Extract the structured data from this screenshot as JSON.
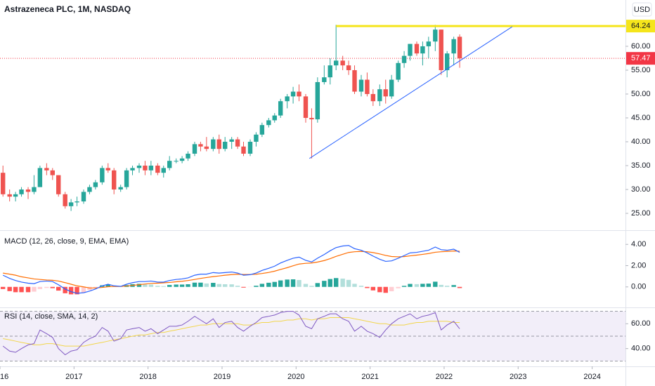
{
  "chart_data": [
    {
      "type": "candlestick",
      "title": "Astrazeneca PLC, 1M, NASDAQ",
      "currency": "USD",
      "x": [
        2016.04,
        2016.13,
        2016.21,
        2016.29,
        2016.38,
        2016.46,
        2016.54,
        2016.63,
        2016.71,
        2016.79,
        2016.88,
        2016.96,
        2017.04,
        2017.13,
        2017.21,
        2017.29,
        2017.38,
        2017.46,
        2017.54,
        2017.63,
        2017.71,
        2017.79,
        2017.88,
        2017.96,
        2018.04,
        2018.13,
        2018.21,
        2018.29,
        2018.38,
        2018.46,
        2018.54,
        2018.63,
        2018.71,
        2018.79,
        2018.88,
        2018.96,
        2019.04,
        2019.13,
        2019.21,
        2019.29,
        2019.38,
        2019.46,
        2019.54,
        2019.63,
        2019.71,
        2019.79,
        2019.88,
        2019.96,
        2020.04,
        2020.13,
        2020.21,
        2020.29,
        2020.38,
        2020.46,
        2020.54,
        2020.63,
        2020.71,
        2020.79,
        2020.88,
        2020.96,
        2021.04,
        2021.13,
        2021.21,
        2021.29,
        2021.38,
        2021.46,
        2021.54,
        2021.63,
        2021.71,
        2021.79,
        2021.88,
        2021.96,
        2022.04,
        2022.13,
        2022.21
      ],
      "open": [
        33.5,
        29,
        28.5,
        29,
        30,
        29.5,
        30.5,
        34.5,
        34,
        33,
        29,
        26.5,
        27.3,
        27.5,
        29.5,
        30.5,
        31.5,
        34.5,
        34,
        30,
        30.5,
        34,
        34.5,
        35,
        34,
        35,
        33.5,
        34.5,
        36,
        36,
        36.5,
        37.5,
        39.5,
        39,
        38.5,
        40.5,
        38.5,
        40,
        40.5,
        39,
        37.5,
        40,
        41.5,
        43.5,
        44.5,
        45.5,
        48.5,
        49.5,
        50.5,
        49.5,
        45,
        44.7,
        52.5,
        53.5,
        56,
        57,
        56,
        55,
        50.5,
        53,
        50,
        48.5,
        51,
        49.5,
        53,
        56.5,
        58,
        60.5,
        58.5,
        60,
        61,
        63.5,
        55,
        58.5,
        62
      ],
      "high": [
        35,
        30,
        29.5,
        30.5,
        30.5,
        33,
        35,
        35.5,
        34.5,
        33,
        29.5,
        28,
        28.5,
        30,
        31,
        32,
        35,
        35.5,
        34.5,
        31,
        34.5,
        35,
        35.5,
        36,
        36,
        35.5,
        35,
        37,
        36.5,
        37,
        38,
        40,
        40,
        41,
        41,
        41.5,
        41,
        41,
        41,
        40,
        40.5,
        42,
        44,
        45,
        46,
        49,
        50,
        51.5,
        52,
        50,
        47,
        53.5,
        56,
        57.5,
        64.5,
        58,
        57,
        56,
        54,
        54.5,
        51,
        52,
        53,
        54,
        57,
        59,
        60.5,
        61,
        61,
        62,
        64.5,
        63.5,
        59,
        62,
        62.5
      ],
      "low": [
        28.5,
        27.5,
        27.5,
        28.5,
        28,
        29,
        30.5,
        33,
        32,
        28.5,
        26,
        25.5,
        26.5,
        27,
        29,
        30,
        31,
        33.5,
        29,
        29.5,
        30,
        33,
        33.5,
        33,
        33,
        33,
        32.5,
        34,
        35.5,
        35.5,
        36,
        37,
        38,
        38,
        38,
        37.5,
        38,
        38.5,
        38.5,
        37,
        37,
        39,
        41,
        43,
        44,
        45,
        47,
        48,
        48.5,
        44,
        36.5,
        44,
        52,
        52,
        55,
        55,
        54,
        50,
        49.5,
        49.5,
        47.5,
        47.5,
        48,
        49,
        52.5,
        55.5,
        57,
        58,
        56,
        57.5,
        59,
        54,
        53.5,
        56,
        55.5
      ],
      "close": [
        29,
        28.5,
        29,
        30,
        29.5,
        30.5,
        34.5,
        34,
        33,
        29,
        26.5,
        27.3,
        27.5,
        29.5,
        30.5,
        31.5,
        34.5,
        34,
        30,
        30.5,
        34,
        34.5,
        35,
        34,
        35,
        33.5,
        34.5,
        36,
        36,
        36.5,
        37.5,
        39.5,
        39,
        38.5,
        40.5,
        38.5,
        40,
        40.5,
        39,
        37.5,
        40,
        41.5,
        43.5,
        44.5,
        45.5,
        48.5,
        49.5,
        50.5,
        49.5,
        45,
        44.7,
        52.5,
        53.5,
        56,
        57,
        56,
        55,
        50.5,
        53,
        50,
        48.5,
        51,
        49.5,
        53,
        56.5,
        58,
        60.5,
        58.5,
        60,
        61,
        63.5,
        55,
        58.5,
        61.5,
        57.47
      ],
      "up_color": "#26a69a",
      "down_color": "#ef5350",
      "xlim": [
        2016,
        2024.45
      ],
      "xticks": [
        {
          "value": 2016,
          "label": "16"
        },
        2017,
        2018,
        2019,
        2020,
        2021,
        2022,
        2023,
        2024
      ],
      "ylim": [
        21.47,
        69.7
      ],
      "yticks": [
        {
          "value": 25,
          "label": "25.00"
        },
        {
          "value": 30,
          "label": "30.00"
        },
        {
          "value": 35,
          "label": "35.00"
        },
        {
          "value": 40,
          "label": "40.00"
        },
        {
          "value": 45,
          "label": "45.00"
        },
        {
          "value": 50,
          "label": "50.00"
        },
        {
          "value": 55,
          "label": "55.00"
        },
        {
          "value": 60,
          "label": "60.00"
        }
      ],
      "last_price": 57.47,
      "last_price_color": "#f23645",
      "horizontal_line": {
        "value": 64.24,
        "from": 2020.54,
        "color": "#f5e51b"
      },
      "trend_line": {
        "x": [
          2020.18,
          2022.92
        ],
        "y": [
          36.5,
          64.1
        ],
        "color": "#2962ff"
      }
    },
    {
      "type": "macd",
      "title": "MACD (12, 26, close, 9, EMA, EMA)",
      "macd": [
        1.1,
        0.8,
        0.6,
        0.45,
        0.35,
        0.3,
        0.5,
        0.55,
        0.5,
        0.2,
        -0.2,
        -0.45,
        -0.6,
        -0.55,
        -0.4,
        -0.2,
        0.1,
        0.25,
        0.1,
        0.05,
        0.25,
        0.4,
        0.5,
        0.5,
        0.55,
        0.45,
        0.45,
        0.6,
        0.7,
        0.75,
        0.85,
        1.1,
        1.2,
        1.2,
        1.35,
        1.3,
        1.35,
        1.4,
        1.3,
        1.1,
        1.15,
        1.3,
        1.55,
        1.75,
        1.95,
        2.25,
        2.5,
        2.7,
        2.8,
        2.5,
        2.35,
        2.7,
        3.05,
        3.4,
        3.7,
        3.85,
        3.9,
        3.6,
        3.45,
        3.2,
        2.9,
        2.6,
        2.4,
        2.45,
        2.7,
        2.95,
        3.2,
        3.25,
        3.35,
        3.45,
        3.75,
        3.5,
        3.45,
        3.55,
        3.25
      ],
      "signal": [
        1.3,
        1.2,
        1.1,
        0.95,
        0.85,
        0.75,
        0.7,
        0.65,
        0.62,
        0.55,
        0.4,
        0.25,
        0.1,
        0,
        -0.1,
        -0.1,
        -0.05,
        0.02,
        0.04,
        0.04,
        0.08,
        0.14,
        0.21,
        0.27,
        0.33,
        0.35,
        0.38,
        0.42,
        0.48,
        0.53,
        0.6,
        0.7,
        0.8,
        0.88,
        0.97,
        1.03,
        1.1,
        1.16,
        1.19,
        1.17,
        1.17,
        1.19,
        1.26,
        1.36,
        1.48,
        1.64,
        1.81,
        1.99,
        2.15,
        2.22,
        2.25,
        2.34,
        2.48,
        2.66,
        2.87,
        3.07,
        3.24,
        3.31,
        3.34,
        3.31,
        3.23,
        3.1,
        2.96,
        2.86,
        2.83,
        2.85,
        2.92,
        2.99,
        3.06,
        3.14,
        3.26,
        3.31,
        3.34,
        3.38,
        3.36
      ],
      "histogram": [
        -0.2,
        -0.4,
        -0.5,
        -0.5,
        -0.5,
        -0.45,
        -0.2,
        -0.1,
        -0.12,
        -0.35,
        -0.6,
        -0.7,
        -0.7,
        -0.55,
        -0.3,
        -0.1,
        0.15,
        0.23,
        0.06,
        0.01,
        0.17,
        0.26,
        0.29,
        0.23,
        0.22,
        0.1,
        0.07,
        0.18,
        0.22,
        0.22,
        0.25,
        0.4,
        0.4,
        0.32,
        0.38,
        0.27,
        0.25,
        0.24,
        0.11,
        -0.07,
        -0.02,
        0.11,
        0.29,
        0.39,
        0.47,
        0.61,
        0.69,
        0.71,
        0.65,
        0.28,
        0.1,
        0.36,
        0.57,
        0.74,
        0.83,
        0.78,
        0.66,
        0.29,
        0.11,
        -0.11,
        -0.33,
        -0.5,
        -0.56,
        -0.41,
        -0.13,
        0.1,
        0.28,
        0.26,
        0.29,
        0.31,
        0.49,
        0.19,
        0.11,
        0.17,
        -0.11
      ],
      "macd_color": "#2962ff",
      "signal_color": "#ff6d00",
      "histogram_colors": [
        "#26a69a",
        "#b2dfdb",
        "#ffcdd2",
        "#ff5252"
      ],
      "ylim": [
        -1.93,
        5.27
      ],
      "yticks": [
        {
          "value": 0,
          "label": "0.00"
        },
        {
          "value": 2,
          "label": "2.00"
        },
        {
          "value": 4,
          "label": "4.00"
        }
      ]
    },
    {
      "type": "rsi",
      "title": "RSI (14, close, SMA, 14, 2)",
      "rsi": [
        42,
        38,
        37,
        40,
        43,
        44,
        55,
        52,
        49,
        40,
        35,
        38,
        39,
        45,
        48,
        50,
        57,
        54,
        46,
        48,
        55,
        56,
        57,
        54,
        56,
        52,
        55,
        58,
        58,
        59,
        62,
        66,
        63,
        60,
        64,
        57,
        61,
        62,
        57,
        54,
        58,
        61,
        65,
        66,
        67,
        69,
        70,
        70,
        67,
        58,
        56,
        64,
        66,
        68,
        68,
        64,
        62,
        54,
        58,
        54,
        52,
        49,
        55,
        60,
        64,
        66,
        68,
        64,
        66,
        67,
        69,
        55,
        59,
        62,
        56
      ],
      "ma": [
        48,
        47,
        46,
        45,
        44,
        43,
        43,
        44,
        44,
        43,
        42,
        42,
        42,
        42,
        43,
        44,
        45,
        46,
        47,
        48,
        49,
        50,
        51,
        51,
        52,
        53,
        53,
        54,
        55,
        56,
        57,
        58,
        59,
        59,
        60,
        60,
        60,
        60,
        60,
        59,
        59,
        60,
        61,
        61,
        62,
        62,
        63,
        63,
        64,
        64,
        63,
        64,
        64,
        65,
        65,
        65,
        65,
        64,
        63,
        62,
        61,
        60,
        60,
        59,
        59,
        59,
        60,
        61,
        61,
        62,
        62,
        62,
        62,
        61,
        61
      ],
      "rsi_color": "#7e57c2",
      "ma_color": "#f2d64b",
      "band_color": "#7e57c2",
      "levels": [
        30,
        50,
        70
      ],
      "ylim": [
        25.7,
        72.6
      ],
      "yticks": [
        {
          "value": 40,
          "label": "40.00"
        },
        {
          "value": 60,
          "label": "60.00"
        }
      ]
    }
  ]
}
